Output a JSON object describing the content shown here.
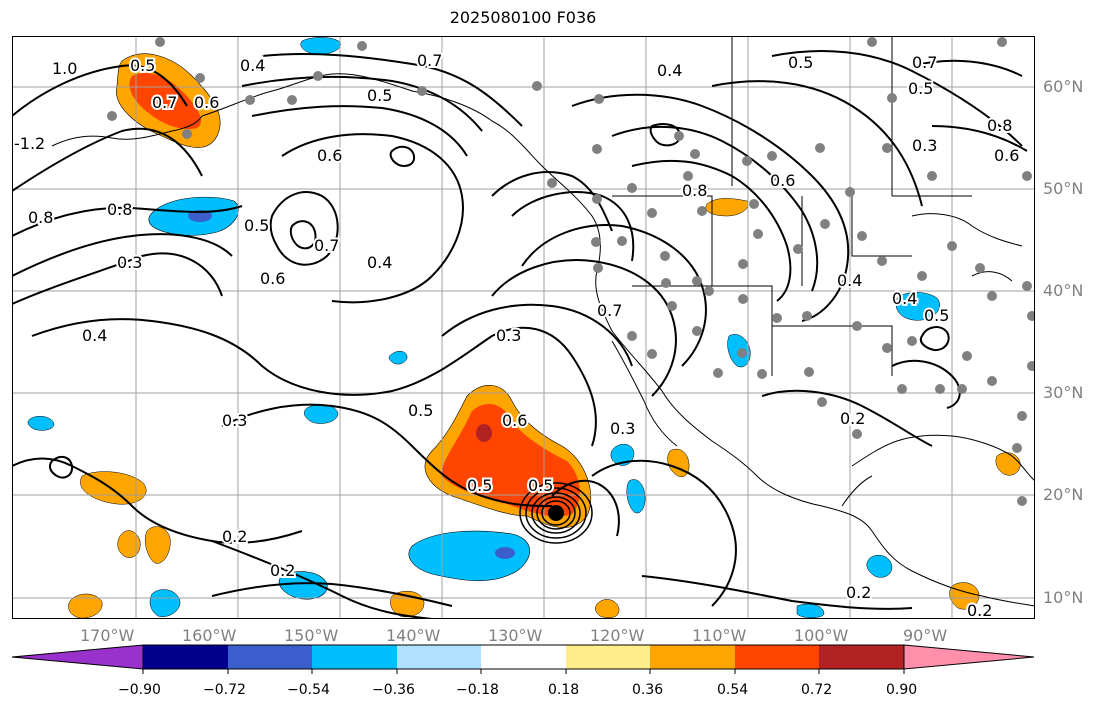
{
  "title": "2025080100 F036",
  "lon_labels": [
    "170°W",
    "160°W",
    "150°W",
    "140°W",
    "130°W",
    "120°W",
    "110°W",
    "100°W",
    "90°W"
  ],
  "lat_labels": [
    "60°N",
    "50°N",
    "40°N",
    "30°N",
    "20°N",
    "10°N"
  ],
  "contour_labels": [
    "1.0",
    "-1.2",
    "0.8",
    "0.8",
    "0.3",
    "0.5",
    "0.7",
    "0.6",
    "0.4",
    "0.4",
    "0.5",
    "0.6",
    "0.7",
    "0.5",
    "0.6",
    "0.7",
    "0.4",
    "0.5",
    "0.7",
    "0.5",
    "0.8",
    "0.3",
    "0.6",
    "0.8",
    "0.6",
    "0.4",
    "0.7",
    "0.3",
    "0.5",
    "0.3",
    "0.5",
    "0.6",
    "0.5",
    "0.3",
    "0.2",
    "0.2",
    "0.2",
    "0.2",
    "0.2",
    "0.4",
    "0.5"
  ],
  "colorbar": {
    "ticks": [
      "−0.90",
      "−0.72",
      "−0.54",
      "−0.36",
      "−0.18",
      "0.18",
      "0.36",
      "0.54",
      "0.72",
      "0.90"
    ],
    "colors": [
      "#9932cc",
      "#00008b",
      "#3a5fcd",
      "#00bfff",
      "#b0e2ff",
      "#ffffff",
      "#ffec8b",
      "#ffa500",
      "#ff4500",
      "#b22222",
      "#ff8fab"
    ]
  },
  "stations_color": "#808080",
  "contour_color": "#000000"
}
